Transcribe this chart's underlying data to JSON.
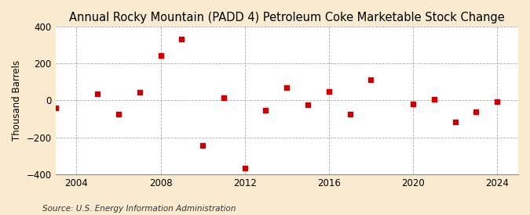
{
  "title": "Annual Rocky Mountain (PADD 4) Petroleum Coke Marketable Stock Change",
  "ylabel": "Thousand Barrels",
  "source": "Source: U.S. Energy Information Administration",
  "figure_bg": "#faebd0",
  "plot_bg": "#ffffff",
  "marker_color": "#cc0000",
  "marker": "s",
  "marker_size": 4,
  "years": [
    2003,
    2005,
    2006,
    2007,
    2008,
    2009,
    2010,
    2011,
    2012,
    2013,
    2014,
    2015,
    2016,
    2017,
    2018,
    2020,
    2021,
    2022,
    2023,
    2024
  ],
  "values": [
    -40,
    35,
    -75,
    45,
    245,
    330,
    -245,
    15,
    -365,
    -55,
    68,
    -25,
    50,
    -75,
    110,
    -20,
    5,
    -115,
    -60,
    -5
  ],
  "xlim": [
    2003,
    2025
  ],
  "ylim": [
    -400,
    400
  ],
  "yticks": [
    -400,
    -200,
    0,
    200,
    400
  ],
  "xticks": [
    2004,
    2008,
    2012,
    2016,
    2020,
    2024
  ],
  "grid_color": "#aaaaaa",
  "grid_style": "--",
  "title_fontsize": 10.5,
  "label_fontsize": 8.5,
  "tick_fontsize": 8.5,
  "source_fontsize": 7.5
}
